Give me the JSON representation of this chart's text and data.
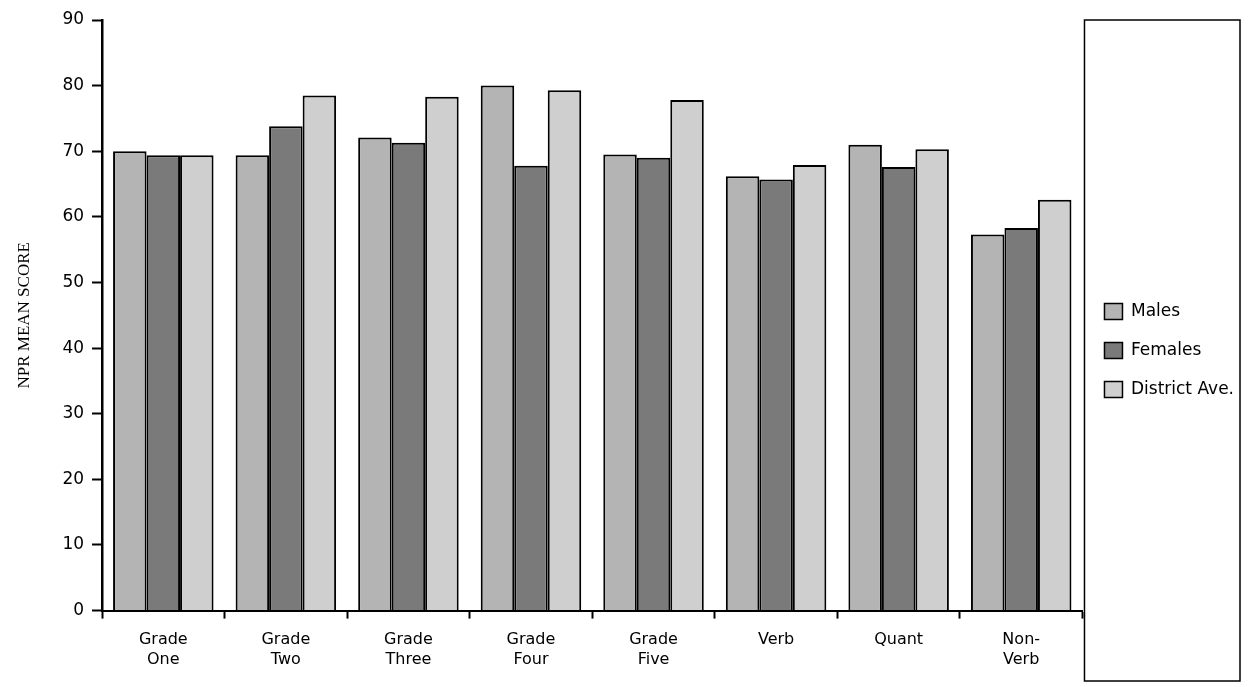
{
  "chart_data": {
    "type": "bar",
    "ylabel": "NPR MEAN SCORE",
    "categories": [
      "Grade One",
      "Grade Two",
      "Grade Three",
      "Grade Four",
      "Grade Five",
      "Verb",
      "Quant",
      "Non-Verb"
    ],
    "series": [
      {
        "name": "Males",
        "color": "#b4b4b4",
        "values": [
          70,
          69.4,
          72.1,
          80,
          69.5,
          66.2,
          71,
          57.3
        ]
      },
      {
        "name": "Females",
        "color": "#7a7a7a",
        "values": [
          69.4,
          73.8,
          71.3,
          67.8,
          69,
          65.7,
          67.6,
          58.3
        ]
      },
      {
        "name": "District Ave.",
        "color": "#cfcfcf",
        "values": [
          69.4,
          78.5,
          78.3,
          79.3,
          77.8,
          67.9,
          70.3,
          62.6
        ]
      }
    ],
    "ylim": [
      0,
      90
    ],
    "yticks": [
      0,
      10,
      20,
      30,
      40,
      50,
      60,
      70,
      80,
      90
    ],
    "grid": false,
    "legend": "right"
  }
}
